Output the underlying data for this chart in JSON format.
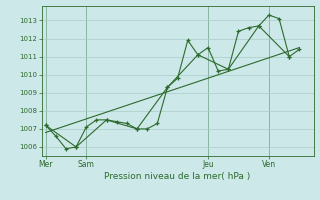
{
  "background_color": "#cce8e8",
  "grid_color": "#aacccc",
  "line_color": "#2d6a2d",
  "marker_color": "#2d6a2d",
  "title": "Pression niveau de la mer( hPa )",
  "ylim": [
    1005.5,
    1013.8
  ],
  "yticks": [
    1006,
    1007,
    1008,
    1009,
    1010,
    1011,
    1012,
    1013
  ],
  "day_labels": [
    "Mer",
    "Sam",
    "Jeu",
    "Ven"
  ],
  "day_positions": [
    0.0,
    2.0,
    8.0,
    11.0
  ],
  "xlim": [
    -0.2,
    13.2
  ],
  "series1_x": [
    0.0,
    0.5,
    1.0,
    1.5,
    2.0,
    2.5,
    3.0,
    3.5,
    4.0,
    4.5,
    5.0,
    5.5,
    6.0,
    6.5,
    7.0,
    7.5,
    8.0,
    8.5,
    9.0,
    9.5,
    10.0,
    10.5,
    11.0,
    11.5,
    12.0,
    12.5
  ],
  "series1_y": [
    1007.2,
    1006.6,
    1005.9,
    1006.0,
    1007.1,
    1007.5,
    1007.5,
    1007.4,
    1007.3,
    1007.0,
    1007.0,
    1007.3,
    1009.3,
    1009.8,
    1011.9,
    1011.1,
    1011.5,
    1010.2,
    1010.3,
    1012.4,
    1012.6,
    1012.7,
    1013.3,
    1013.1,
    1011.0,
    1011.4
  ],
  "series2_x": [
    0.0,
    1.5,
    3.0,
    4.5,
    6.0,
    7.5,
    9.0,
    10.5,
    12.0
  ],
  "series2_y": [
    1007.2,
    1006.0,
    1007.5,
    1007.0,
    1009.3,
    1011.1,
    1010.3,
    1012.7,
    1011.0
  ],
  "trend_x": [
    0.0,
    12.5
  ],
  "trend_y": [
    1006.8,
    1011.5
  ],
  "vlines": [
    0.0,
    2.0,
    8.0,
    11.0
  ],
  "figsize": [
    3.2,
    2.0
  ],
  "dpi": 100
}
